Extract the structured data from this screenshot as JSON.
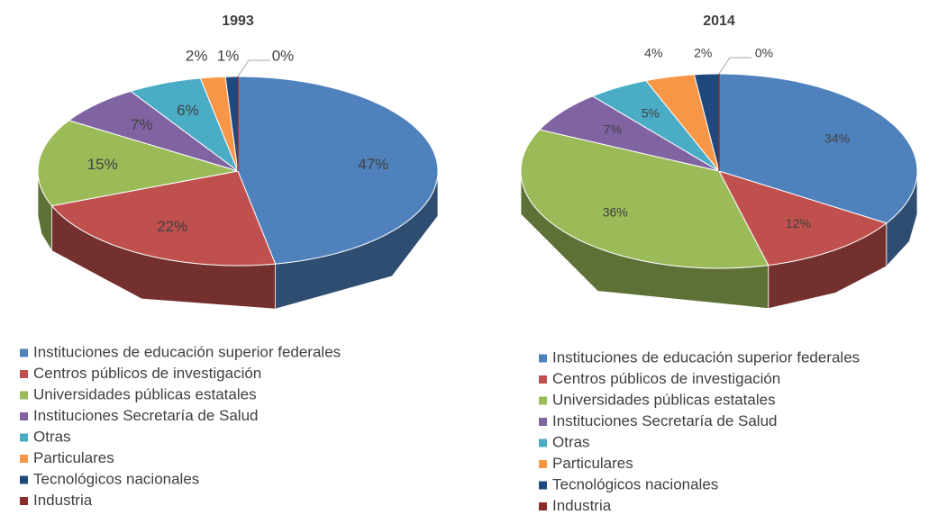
{
  "chart_data": [
    {
      "type": "pie",
      "title": "1993",
      "categories": [
        "Instituciones de educación superior federales",
        "Centros públicos de investigación",
        "Universidades públicas estatales",
        "Instituciones Secretaría de Salud",
        "Otras",
        "Particulares",
        "Tecnológicos nacionales",
        "Industria"
      ],
      "values": [
        47,
        22,
        15,
        7,
        6,
        2,
        1,
        0
      ],
      "value_labels": [
        "47%",
        "22%",
        "15%",
        "7%",
        "6%",
        "2%",
        "1%",
        "0%"
      ],
      "colors": [
        "#4f81bd",
        "#c0504d",
        "#9bbb59",
        "#8064a2",
        "#4bacc6",
        "#f79646",
        "#1f497d",
        "#8b2e2b"
      ]
    },
    {
      "type": "pie",
      "title": "2014",
      "categories": [
        "Instituciones de educación superior federales",
        "Centros públicos de investigación",
        "Universidades públicas estatales",
        "Instituciones Secretaría de Salud",
        "Otras",
        "Particulares",
        "Tecnológicos nacionales",
        "Industria"
      ],
      "values": [
        34,
        12,
        36,
        7,
        5,
        4,
        2,
        0
      ],
      "value_labels": [
        "34%",
        "12%",
        "36%",
        "7%",
        "5%",
        "4%",
        "2%",
        "0%"
      ],
      "colors": [
        "#4f81bd",
        "#c0504d",
        "#9bbb59",
        "#8064a2",
        "#4bacc6",
        "#f79646",
        "#1f497d",
        "#8b2e2b"
      ]
    }
  ]
}
